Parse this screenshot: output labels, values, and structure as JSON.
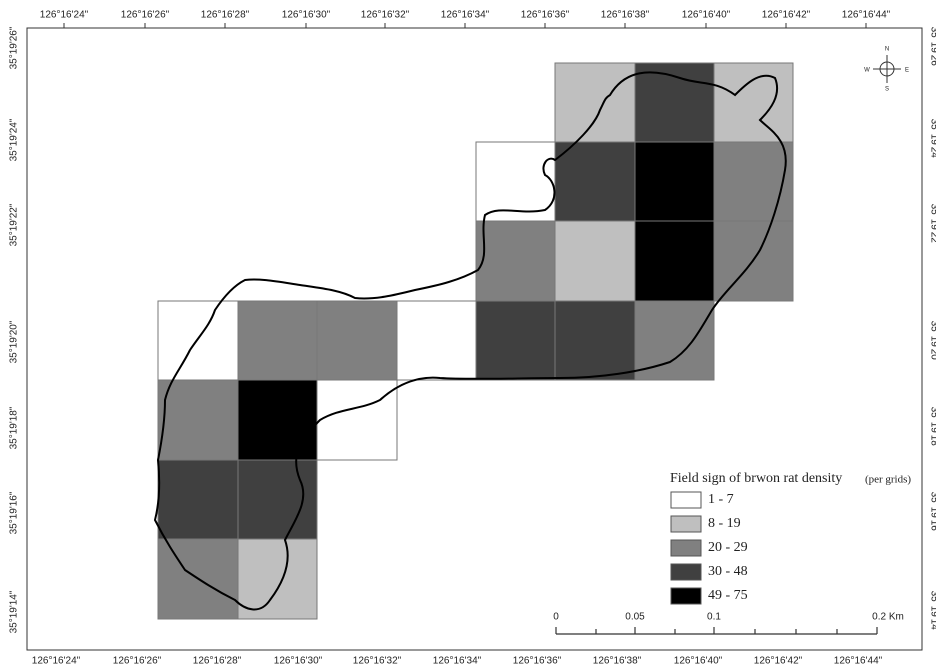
{
  "map": {
    "top_labels": [
      "126°16'24\"",
      "126°16'26\"",
      "126°16'28\"",
      "126°16'30\"",
      "126°16'32\"",
      "126°16'34\"",
      "126°16'36\"",
      "126°16'38\"",
      "126°16'40\"",
      "126°16'42\"",
      "126°16'44\""
    ],
    "left_labels": [
      "35°19'26\"",
      "35°19'24\"",
      "35°19'22\"",
      "35°19'20\"",
      "35°19'18\"",
      "35°19'16\"",
      "35°19'14\""
    ],
    "legend": {
      "title": "Field sign of brwon rat density",
      "title_note": "(per grids)",
      "items": [
        {
          "label": "1 - 7",
          "color": "#ffffff"
        },
        {
          "label": "8 - 19",
          "color": "#bfbfbf"
        },
        {
          "label": "20 - 29",
          "color": "#808080"
        },
        {
          "label": "30 - 48",
          "color": "#404040"
        },
        {
          "label": "49 - 75",
          "color": "#000000"
        }
      ]
    },
    "scale_bar": {
      "labels": [
        "0",
        "0.05",
        "0.1",
        "0.2 Km"
      ]
    },
    "compass": {
      "n": "N",
      "s": "S",
      "e": "E",
      "w": "W"
    }
  }
}
